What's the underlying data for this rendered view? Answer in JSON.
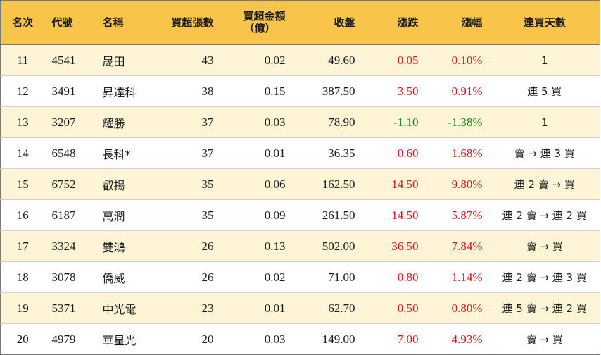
{
  "headers": {
    "rank": "名次",
    "code": "代號",
    "name": "名稱",
    "volume": "買超張數",
    "amount_line1": "買超金額",
    "amount_line2": "（億）",
    "close": "收盤",
    "change": "漲跌",
    "pct": "漲幅",
    "days": "連買天數"
  },
  "rows": [
    {
      "rank": "11",
      "code": "4541",
      "name": "晟田",
      "volume": "43",
      "amount": "0.02",
      "close": "49.60",
      "change": "0.05",
      "pct": "0.10%",
      "days": "1",
      "trend": "up"
    },
    {
      "rank": "12",
      "code": "3491",
      "name": "昇達科",
      "volume": "38",
      "amount": "0.15",
      "close": "387.50",
      "change": "3.50",
      "pct": "0.91%",
      "days": "連 5 買",
      "trend": "up"
    },
    {
      "rank": "13",
      "code": "3207",
      "name": "耀勝",
      "volume": "37",
      "amount": "0.03",
      "close": "78.90",
      "change": "-1.10",
      "pct": "-1.38%",
      "days": "1",
      "trend": "down"
    },
    {
      "rank": "14",
      "code": "6548",
      "name": "長科*",
      "volume": "37",
      "amount": "0.01",
      "close": "36.35",
      "change": "0.60",
      "pct": "1.68%",
      "days": "賣 → 連 3 買",
      "trend": "up"
    },
    {
      "rank": "15",
      "code": "6752",
      "name": "叡揚",
      "volume": "35",
      "amount": "0.06",
      "close": "162.50",
      "change": "14.50",
      "pct": "9.80%",
      "days": "連 2 賣 → 買",
      "trend": "up"
    },
    {
      "rank": "16",
      "code": "6187",
      "name": "萬潤",
      "volume": "35",
      "amount": "0.09",
      "close": "261.50",
      "change": "14.50",
      "pct": "5.87%",
      "days": "連 2 賣 → 連 2 買",
      "trend": "up"
    },
    {
      "rank": "17",
      "code": "3324",
      "name": "雙鴻",
      "volume": "26",
      "amount": "0.13",
      "close": "502.00",
      "change": "36.50",
      "pct": "7.84%",
      "days": "賣 → 買",
      "trend": "up"
    },
    {
      "rank": "18",
      "code": "3078",
      "name": "僑威",
      "volume": "26",
      "amount": "0.02",
      "close": "71.00",
      "change": "0.80",
      "pct": "1.14%",
      "days": "連 2 賣 → 連 3 買",
      "trend": "up"
    },
    {
      "rank": "19",
      "code": "5371",
      "name": "中光電",
      "volume": "23",
      "amount": "0.01",
      "close": "62.70",
      "change": "0.50",
      "pct": "0.80%",
      "days": "連 5 賣 → 連 2 買",
      "trend": "up"
    },
    {
      "rank": "20",
      "code": "4979",
      "name": "華星光",
      "volume": "20",
      "amount": "0.03",
      "close": "149.00",
      "change": "7.00",
      "pct": "4.93%",
      "days": "賣 → 買",
      "trend": "up"
    }
  ],
  "colors": {
    "header_bg": "#f9c44a",
    "stripe_bg": "#fff5d6",
    "up": "#e0141e",
    "down": "#118a1b"
  }
}
